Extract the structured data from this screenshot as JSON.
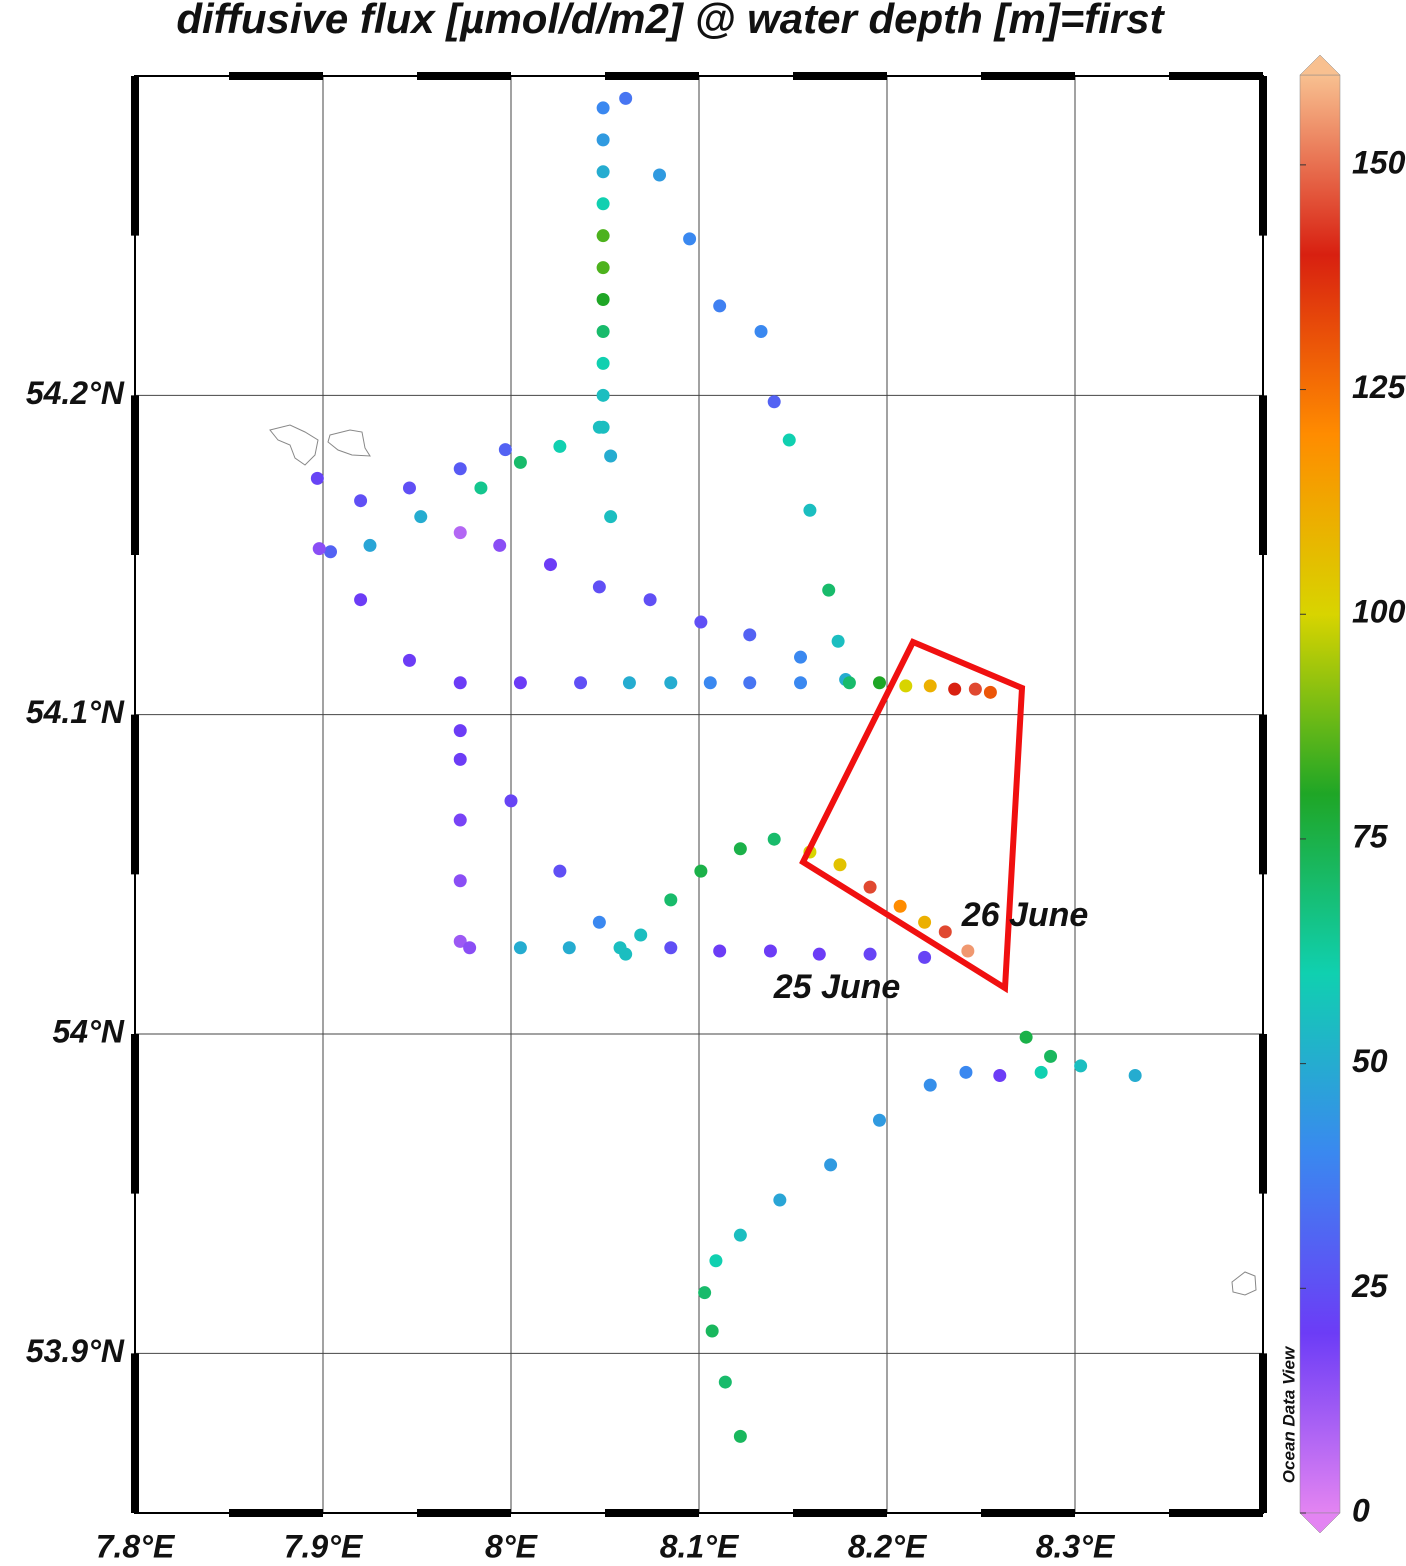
{
  "chart_data": {
    "type": "scatter",
    "title": "diffusive flux [µmol/d/m2] @ water depth [m]=first",
    "xlim": [
      7.8,
      8.4
    ],
    "ylim": [
      53.85,
      54.3
    ],
    "xticks": [
      {
        "value": 7.8,
        "label": "7.8°E"
      },
      {
        "value": 7.9,
        "label": "7.9°E"
      },
      {
        "value": 8.0,
        "label": "8°E"
      },
      {
        "value": 8.1,
        "label": "8.1°E"
      },
      {
        "value": 8.2,
        "label": "8.2°E"
      },
      {
        "value": 8.3,
        "label": "8.3°E"
      }
    ],
    "yticks": [
      {
        "value": 53.9,
        "label": "53.9°N"
      },
      {
        "value": 54.0,
        "label": "54°N"
      },
      {
        "value": 54.1,
        "label": "54.1°N"
      },
      {
        "value": 54.2,
        "label": "54.2°N"
      }
    ],
    "grid": true,
    "x": [
      8.049,
      8.049,
      8.049,
      8.049,
      8.049,
      8.049,
      8.049,
      8.049,
      8.049,
      8.049,
      8.049,
      8.061,
      8.079,
      8.095,
      8.111,
      8.133,
      8.14,
      8.148,
      8.159,
      8.169,
      8.174,
      8.178,
      8.047,
      8.026,
      8.005,
      7.984,
      7.952,
      7.925,
      7.904,
      7.997,
      7.973,
      7.946,
      7.92,
      7.897,
      7.973,
      7.994,
      8.021,
      8.047,
      8.074,
      8.101,
      8.127,
      8.154,
      7.898,
      7.92,
      7.946,
      7.973,
      8.0,
      8.026,
      8.047,
      8.061,
      7.973,
      8.005,
      8.037,
      8.063,
      8.085,
      8.106,
      8.127,
      8.154,
      8.18,
      8.196,
      8.21,
      8.223,
      8.236,
      8.247,
      8.255,
      7.973,
      7.973,
      7.973,
      7.973,
      7.978,
      8.005,
      8.031,
      8.058,
      8.085,
      8.111,
      8.138,
      8.164,
      8.191,
      8.22,
      8.069,
      8.085,
      8.101,
      8.122,
      8.14,
      8.159,
      8.175,
      8.191,
      8.207,
      8.22,
      8.231,
      8.243,
      8.122,
      8.114,
      8.107,
      8.103,
      8.109,
      8.122,
      8.143,
      8.17,
      8.196,
      8.223,
      8.242,
      8.26,
      8.282,
      8.303,
      8.332,
      8.274,
      8.287,
      8.053,
      8.053
    ],
    "y": [
      54.29,
      54.28,
      54.27,
      54.26,
      54.25,
      54.24,
      54.23,
      54.22,
      54.21,
      54.2,
      54.19,
      54.293,
      54.269,
      54.249,
      54.228,
      54.22,
      54.198,
      54.186,
      54.164,
      54.139,
      54.123,
      54.111,
      54.19,
      54.184,
      54.179,
      54.171,
      54.162,
      54.153,
      54.151,
      54.183,
      54.177,
      54.171,
      54.167,
      54.174,
      54.157,
      54.153,
      54.147,
      54.14,
      54.136,
      54.129,
      54.125,
      54.118,
      54.152,
      54.136,
      54.117,
      54.095,
      54.073,
      54.051,
      54.035,
      54.025,
      54.11,
      54.11,
      54.11,
      54.11,
      54.11,
      54.11,
      54.11,
      54.11,
      54.11,
      54.11,
      54.109,
      54.109,
      54.108,
      54.108,
      54.107,
      54.086,
      54.067,
      54.048,
      54.029,
      54.027,
      54.027,
      54.027,
      54.027,
      54.027,
      54.026,
      54.026,
      54.025,
      54.025,
      54.024,
      54.031,
      54.042,
      54.051,
      54.058,
      54.061,
      54.057,
      54.053,
      54.046,
      54.04,
      54.035,
      54.032,
      54.026,
      53.874,
      53.891,
      53.907,
      53.919,
      53.929,
      53.937,
      53.948,
      53.959,
      53.973,
      53.984,
      53.988,
      53.987,
      53.988,
      53.99,
      53.987,
      53.999,
      53.993,
      54.181,
      54.162
    ],
    "values": [
      40,
      45,
      50,
      60,
      85,
      85,
      80,
      70,
      60,
      55,
      55,
      35,
      45,
      40,
      38,
      40,
      30,
      60,
      55,
      70,
      55,
      50,
      55,
      60,
      70,
      65,
      50,
      48,
      30,
      30,
      28,
      25,
      25,
      22,
      8,
      15,
      20,
      25,
      25,
      25,
      30,
      40,
      15,
      20,
      20,
      20,
      22,
      25,
      40,
      55,
      20,
      20,
      25,
      50,
      50,
      40,
      35,
      40,
      70,
      80,
      100,
      110,
      140,
      145,
      130,
      20,
      18,
      15,
      12,
      15,
      50,
      50,
      55,
      25,
      20,
      20,
      20,
      22,
      22,
      55,
      70,
      75,
      75,
      70,
      100,
      105,
      145,
      120,
      110,
      145,
      155,
      72,
      70,
      72,
      70,
      60,
      55,
      48,
      45,
      45,
      42,
      40,
      20,
      60,
      55,
      50,
      75,
      72,
      50,
      55
    ],
    "colorbar": {
      "lim": [
        0,
        160
      ],
      "ticks": [
        0,
        25,
        50,
        75,
        100,
        125,
        150
      ],
      "colors": [
        "#e384f2",
        "#6c3cf6",
        "#3a88f0",
        "#10d0b0",
        "#1fa626",
        "#d8d400",
        "#ff8c00",
        "#d82010",
        "#f8c090"
      ]
    },
    "annotations": [
      "26 June",
      "25 June"
    ],
    "credit": "Ocean Data View"
  }
}
